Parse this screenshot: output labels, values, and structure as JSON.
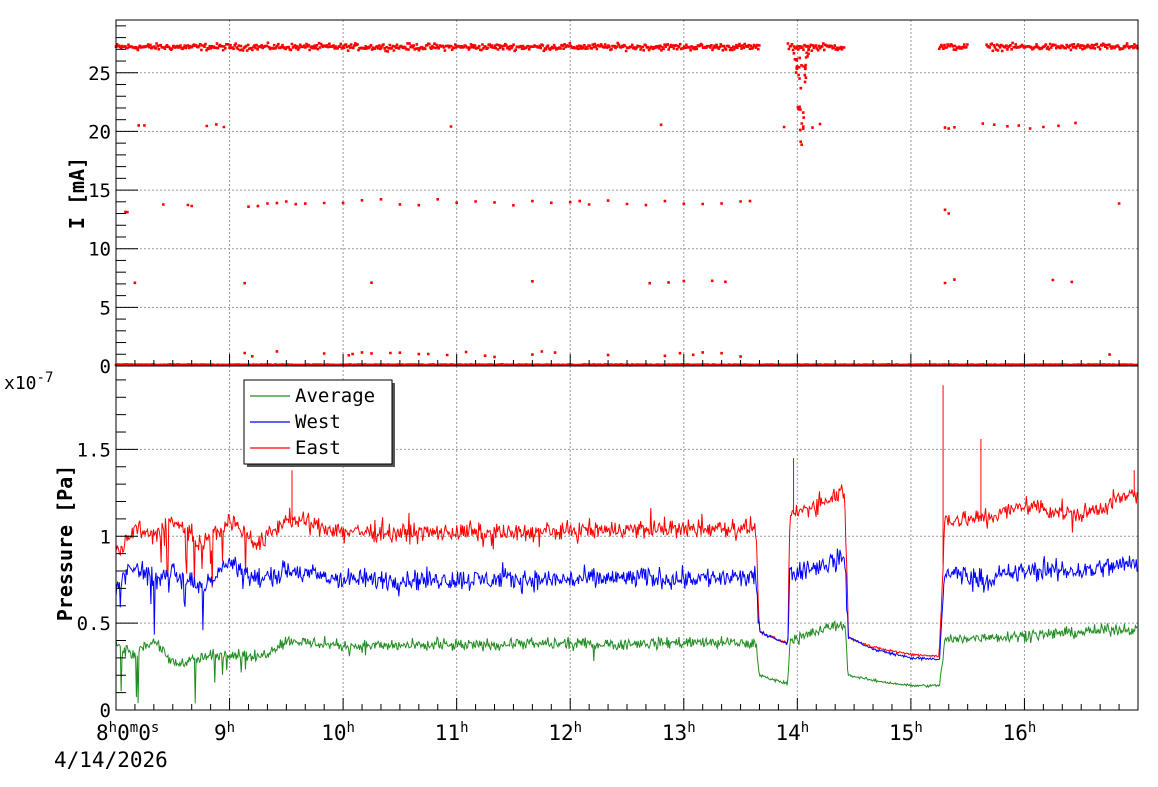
{
  "chart_data": [
    {
      "type": "scatter",
      "ylabel": "I [mA]",
      "xlim": [
        "8:00",
        "17:00"
      ],
      "ylim": [
        0,
        29.5
      ],
      "y_ticks": [
        0,
        5,
        10,
        15,
        20,
        25
      ],
      "grid": true,
      "series": [
        {
          "color": "#ff0000",
          "bands": [
            {
              "value": 27.2,
              "spread": 0.4,
              "segments": [
                [
                  "8:00",
                  "13:40"
                ],
                [
                  "13:55",
                  "14:25"
                ],
                [
                  "15:15",
                  "15:30"
                ],
                [
                  "15:40",
                  "17:00"
                ]
              ]
            },
            {
              "value": 0.1,
              "spread": 0.05,
              "segments": [
                [
                  "8:00",
                  "17:00"
                ]
              ]
            }
          ],
          "scatter_levels": [
            {
              "value": 20.5,
              "spread": 0.4,
              "times": [
                "8:12",
                "8:15",
                "8:48",
                "8:53",
                "8:57",
                "10:57",
                "12:48",
                "13:53",
                "14:08",
                "14:12",
                "15:18",
                "15:20",
                "15:23",
                "15:38",
                "15:44",
                "15:51",
                "15:57",
                "16:03",
                "16:10",
                "16:18",
                "16:27"
              ]
            },
            {
              "value": 13.9,
              "spread": 0.6,
              "times": [
                "8:25",
                "8:38",
                "8:40",
                "9:10",
                "9:15",
                "9:20",
                "9:25",
                "9:30",
                "9:35",
                "9:40",
                "9:50",
                "10:00",
                "10:10",
                "10:20",
                "10:30",
                "10:40",
                "10:50",
                "11:00",
                "11:10",
                "11:20",
                "11:30",
                "11:40",
                "11:50",
                "12:00",
                "12:05",
                "12:10",
                "12:20",
                "12:30",
                "12:40",
                "12:50",
                "13:00",
                "13:10",
                "13:20",
                "13:30",
                "13:35",
                "16:50"
              ]
            },
            {
              "value": 13.2,
              "spread": 0.3,
              "times": [
                "8:05",
                "8:06",
                "15:18",
                "15:20"
              ]
            },
            {
              "value": 7.2,
              "spread": 0.3,
              "times": [
                "8:10",
                "9:08",
                "10:15",
                "11:40",
                "12:42",
                "12:52",
                "13:00",
                "13:15",
                "13:22",
                "15:18",
                "15:23",
                "16:15",
                "16:25"
              ]
            },
            {
              "value": 1.0,
              "spread": 0.3,
              "times": [
                "9:08",
                "9:12",
                "9:25",
                "9:50",
                "10:03",
                "10:05",
                "10:10",
                "10:15",
                "10:25",
                "10:30",
                "10:40",
                "10:45",
                "10:55",
                "11:05",
                "11:15",
                "11:20",
                "11:40",
                "11:45",
                "11:52",
                "12:20",
                "12:50",
                "12:58",
                "13:05",
                "13:10",
                "13:20",
                "13:30",
                "16:45"
              ]
            }
          ],
          "dip": {
            "time": "14:02",
            "min": 17.8
          }
        }
      ]
    },
    {
      "type": "line",
      "ylabel": "Pressure [Pa]",
      "y_multiplier": "x10",
      "y_multiplier_exp": "-7",
      "xlim": [
        "8:00",
        "17:00"
      ],
      "ylim": [
        0,
        1.98
      ],
      "y_ticks": [
        0,
        0.5,
        1,
        1.5
      ],
      "y_tick_labels": [
        "0",
        "0.5",
        "1",
        "1.5"
      ],
      "x_ticks": [
        "8:00",
        "9:00",
        "10:00",
        "11:00",
        "12:00",
        "13:00",
        "14:00",
        "15:00",
        "16:00"
      ],
      "x_tick_hours": [
        "8",
        "9",
        "10",
        "11",
        "12",
        "13",
        "14",
        "15",
        "16"
      ],
      "x_first_tick_suffix": "0m0s",
      "date_label": "4/14/2026",
      "grid": true,
      "legend": [
        "Average",
        "West",
        "East"
      ],
      "legend_position": "top-left",
      "series": [
        {
          "name": "Average",
          "color": "#228b22",
          "profile": [
            [
              "8:00",
              0.38
            ],
            [
              "8:10",
              0.33
            ],
            [
              "8:20",
              0.4
            ],
            [
              "8:30",
              0.27
            ],
            [
              "8:45",
              0.3
            ],
            [
              "9:00",
              0.33
            ],
            [
              "9:15",
              0.3
            ],
            [
              "9:30",
              0.4
            ],
            [
              "10:00",
              0.37
            ],
            [
              "10:30",
              0.37
            ],
            [
              "11:00",
              0.37
            ],
            [
              "11:30",
              0.38
            ],
            [
              "12:00",
              0.38
            ],
            [
              "12:30",
              0.38
            ],
            [
              "13:00",
              0.39
            ],
            [
              "13:38",
              0.38
            ],
            [
              "13:40",
              0.2
            ],
            [
              "13:55",
              0.15
            ],
            [
              "13:56",
              0.4
            ],
            [
              "14:10",
              0.45
            ],
            [
              "14:25",
              0.5
            ],
            [
              "14:27",
              0.2
            ],
            [
              "14:40",
              0.17
            ],
            [
              "15:00",
              0.14
            ],
            [
              "15:15",
              0.14
            ],
            [
              "15:18",
              0.4
            ],
            [
              "15:40",
              0.42
            ],
            [
              "16:00",
              0.43
            ],
            [
              "16:30",
              0.45
            ],
            [
              "17:00",
              0.47
            ]
          ]
        },
        {
          "name": "West",
          "color": "#0000ff",
          "profile": [
            [
              "8:00",
              0.7
            ],
            [
              "8:10",
              0.85
            ],
            [
              "8:20",
              0.75
            ],
            [
              "8:30",
              0.8
            ],
            [
              "8:45",
              0.7
            ],
            [
              "9:00",
              0.85
            ],
            [
              "9:15",
              0.75
            ],
            [
              "9:30",
              0.8
            ],
            [
              "10:00",
              0.75
            ],
            [
              "10:30",
              0.75
            ],
            [
              "11:00",
              0.75
            ],
            [
              "11:30",
              0.75
            ],
            [
              "12:00",
              0.75
            ],
            [
              "12:30",
              0.76
            ],
            [
              "13:00",
              0.76
            ],
            [
              "13:38",
              0.76
            ],
            [
              "13:40",
              0.45
            ],
            [
              "13:55",
              0.38
            ],
            [
              "13:56",
              0.8
            ],
            [
              "14:10",
              0.82
            ],
            [
              "14:25",
              0.88
            ],
            [
              "14:27",
              0.42
            ],
            [
              "14:40",
              0.35
            ],
            [
              "15:00",
              0.3
            ],
            [
              "15:15",
              0.29
            ],
            [
              "15:18",
              0.8
            ],
            [
              "15:40",
              0.75
            ],
            [
              "16:00",
              0.8
            ],
            [
              "16:30",
              0.8
            ],
            [
              "17:00",
              0.85
            ]
          ]
        },
        {
          "name": "East",
          "color": "#ff0000",
          "profile": [
            [
              "8:00",
              0.9
            ],
            [
              "8:10",
              1.05
            ],
            [
              "8:20",
              1.0
            ],
            [
              "8:30",
              1.1
            ],
            [
              "8:45",
              0.95
            ],
            [
              "9:00",
              1.1
            ],
            [
              "9:15",
              0.95
            ],
            [
              "9:30",
              1.1
            ],
            [
              "10:00",
              1.03
            ],
            [
              "10:30",
              1.02
            ],
            [
              "11:00",
              1.02
            ],
            [
              "11:30",
              1.02
            ],
            [
              "12:00",
              1.03
            ],
            [
              "12:30",
              1.04
            ],
            [
              "13:00",
              1.04
            ],
            [
              "13:38",
              1.05
            ],
            [
              "13:40",
              0.45
            ],
            [
              "13:55",
              0.38
            ],
            [
              "13:56",
              1.12
            ],
            [
              "14:10",
              1.18
            ],
            [
              "14:25",
              1.27
            ],
            [
              "14:27",
              0.42
            ],
            [
              "14:40",
              0.36
            ],
            [
              "15:00",
              0.32
            ],
            [
              "15:15",
              0.31
            ],
            [
              "15:18",
              1.1
            ],
            [
              "15:40",
              1.1
            ],
            [
              "16:00",
              1.18
            ],
            [
              "16:30",
              1.12
            ],
            [
              "17:00",
              1.25
            ]
          ],
          "spikes": [
            [
              "9:33",
              1.38
            ],
            [
              "13:58",
              1.45
            ],
            [
              "15:17",
              1.87
            ],
            [
              "15:37",
              1.56
            ],
            [
              "16:58",
              1.38
            ]
          ]
        }
      ]
    }
  ]
}
